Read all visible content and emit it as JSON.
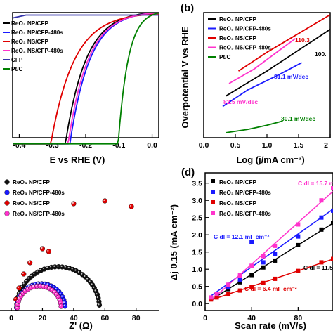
{
  "chart_data": [
    {
      "id": "a",
      "type": "line",
      "panel_label": "",
      "xlabel": "E vs RHE (V)",
      "ylabel": "",
      "xlim": [
        -0.42,
        0.02
      ],
      "ylim": [
        -100,
        2
      ],
      "xticks": [
        "-0.4",
        "-0.3",
        "-0.2",
        "-0.1",
        "0.0"
      ],
      "legend_position": "top-left",
      "series": [
        {
          "name": "ReO3 NP/CFP",
          "color": "#000000",
          "onset": -0.05,
          "k": 0.062,
          "scale": 3.6
        },
        {
          "name": "ReO3 NP/CFP-480s",
          "color": "#1a1aff",
          "onset": -0.04,
          "k": 0.06,
          "scale": 3.4
        },
        {
          "name": "ReO3 NS/CFP",
          "color": "#e00000",
          "onset": -0.03,
          "k": 0.07,
          "scale": 2.1
        },
        {
          "name": "ReO3 NS/CFP-480s",
          "color": "#ff33cc",
          "onset": -0.04,
          "k": 0.06,
          "scale": 3.1
        },
        {
          "name": "CFP",
          "color": "#3333aa",
          "onset": -0.02,
          "k": 0.1,
          "scale": 0.02
        },
        {
          "name": "Pt/C",
          "color": "#008000",
          "onset": 0.0,
          "k": 0.03,
          "scale": 3.6
        }
      ]
    },
    {
      "id": "b",
      "type": "line",
      "panel_label": "(b)",
      "xlabel": "Log (j/mA cm⁻²)",
      "ylabel": "Overpotential V vs RHE",
      "xlim": [
        0,
        2
      ],
      "ylim": [
        0,
        0.3
      ],
      "xticks": [
        "0.0",
        "0.5",
        "1.0",
        "1.5",
        "2"
      ],
      "legend_position": "top-left",
      "series": [
        {
          "name": "ReO3 NP/CFP",
          "color": "#000000",
          "x": [
            0.35,
            1.0,
            1.6,
            2.0
          ],
          "y": [
            0.1,
            0.16,
            0.22,
            0.26
          ]
        },
        {
          "name": "ReO3 NP/CFP-480s",
          "color": "#1a1aff",
          "x": [
            0.3,
            0.7,
            1.2,
            1.55
          ],
          "y": [
            0.075,
            0.115,
            0.152,
            0.18
          ]
        },
        {
          "name": "ReO3 NS/CFP",
          "color": "#e00000",
          "x": [
            0.55,
            1.0,
            1.5,
            2.0
          ],
          "y": [
            0.16,
            0.205,
            0.25,
            0.295
          ]
        },
        {
          "name": "ReO3 NS/CFP-480s",
          "color": "#ff33cc",
          "x": [
            0.4,
            0.8,
            1.2,
            1.45
          ],
          "y": [
            0.13,
            0.165,
            0.21,
            0.238
          ]
        },
        {
          "name": "Pt/C",
          "color": "#008000",
          "x": [
            0.35,
            0.7,
            1.0,
            1.25
          ],
          "y": [
            0.012,
            0.02,
            0.03,
            0.04
          ]
        }
      ],
      "annotations": [
        {
          "text": "110.3",
          "color": "#e00000"
        },
        {
          "text": "100.",
          "color": "#000000"
        },
        {
          "text": "81.1 mV/dec",
          "color": "#1a1aff"
        },
        {
          "text": "82.5 mV/dec",
          "color": "#ff33cc"
        },
        {
          "text": "30.1 mV/dec",
          "color": "#008000"
        }
      ]
    },
    {
      "id": "c",
      "type": "scatter",
      "panel_label": "",
      "xlabel": "Z' (Ω)",
      "ylabel": "",
      "xlim": [
        0,
        90
      ],
      "ylim": [
        0,
        45
      ],
      "xticks": [
        "0",
        "20",
        "40",
        "60",
        "80"
      ],
      "legend_position": "top-left",
      "series": [
        {
          "name": "ReO3 NP/CFP",
          "color": "#111111",
          "center": 30,
          "radius": 26.5,
          "start": 4,
          "n": 36
        },
        {
          "name": "ReO3 NP/CFP-480s",
          "color": "#1a1aff",
          "center": 19,
          "radius": 15.5,
          "start": 4,
          "n": 24
        },
        {
          "name": "ReO3 NS/CFP",
          "color": "#e00000",
          "points": [
            [
              20,
              22
            ],
            [
              24,
              21
            ],
            [
              40,
              38
            ],
            [
              60,
              39
            ],
            [
              77,
              37
            ],
            [
              3,
              4
            ],
            [
              5,
              8
            ],
            [
              8,
              13
            ],
            [
              12,
              17
            ]
          ]
        },
        {
          "name": "ReO3 NS/CFP-480s",
          "color": "#ff33cc",
          "center": 18,
          "radius": 14,
          "start": 4,
          "n": 22
        }
      ]
    },
    {
      "id": "d",
      "type": "scatter",
      "panel_label": "(d)",
      "xlabel": "Scan rate (mV/s)",
      "ylabel": "Δj 0.15 (mA cm⁻²)",
      "xlim": [
        0,
        110
      ],
      "ylim": [
        -0.2,
        3.8
      ],
      "xticks": [
        "0",
        "40",
        "80"
      ],
      "yticks": [
        "0.0",
        "0.5",
        "1.0",
        "1.5",
        "2.0",
        "2.5",
        "3.0",
        "3.5"
      ],
      "legend_position": "top-left",
      "series": [
        {
          "name": "ReO3 NP/CFP",
          "color": "#000000",
          "x": [
            5,
            10,
            20,
            30,
            40,
            50,
            60,
            80,
            100,
            110
          ],
          "y": [
            0.15,
            0.22,
            0.42,
            0.62,
            0.83,
            1.05,
            1.25,
            1.7,
            2.15,
            2.35
          ]
        },
        {
          "name": "ReO3 NP/CFP-480s",
          "color": "#1a1aff",
          "x": [
            5,
            10,
            20,
            30,
            40,
            50,
            60,
            80,
            100,
            110
          ],
          "y": [
            0.15,
            0.25,
            0.47,
            0.7,
            1.8,
            1.2,
            1.45,
            1.95,
            2.5,
            2.7
          ]
        },
        {
          "name": "ReO3 NS/CFP",
          "color": "#e00000",
          "x": [
            5,
            10,
            20,
            30,
            40,
            50,
            60,
            80,
            100,
            110
          ],
          "y": [
            0.12,
            0.18,
            0.28,
            0.38,
            0.48,
            0.6,
            0.72,
            0.95,
            1.2,
            1.3
          ]
        },
        {
          "name": "ReO3 NS/CFP-480s",
          "color": "#ff33cc",
          "x": [
            5,
            10,
            20,
            30,
            40,
            50,
            60,
            80,
            100,
            110
          ],
          "y": [
            0.18,
            0.28,
            0.55,
            0.82,
            1.1,
            1.38,
            1.68,
            2.3,
            3.0,
            3.35
          ]
        }
      ],
      "annotations": [
        {
          "text": "C dl = 15.7 m",
          "color": "#ff33cc"
        },
        {
          "text": "C dl = 12.1 mF cm⁻²",
          "color": "#1a1aff"
        },
        {
          "text": "C dl = 11.5",
          "color": "#000000"
        },
        {
          "text": "C dl = 6.4 mF cm⁻²",
          "color": "#e00000"
        }
      ]
    }
  ]
}
